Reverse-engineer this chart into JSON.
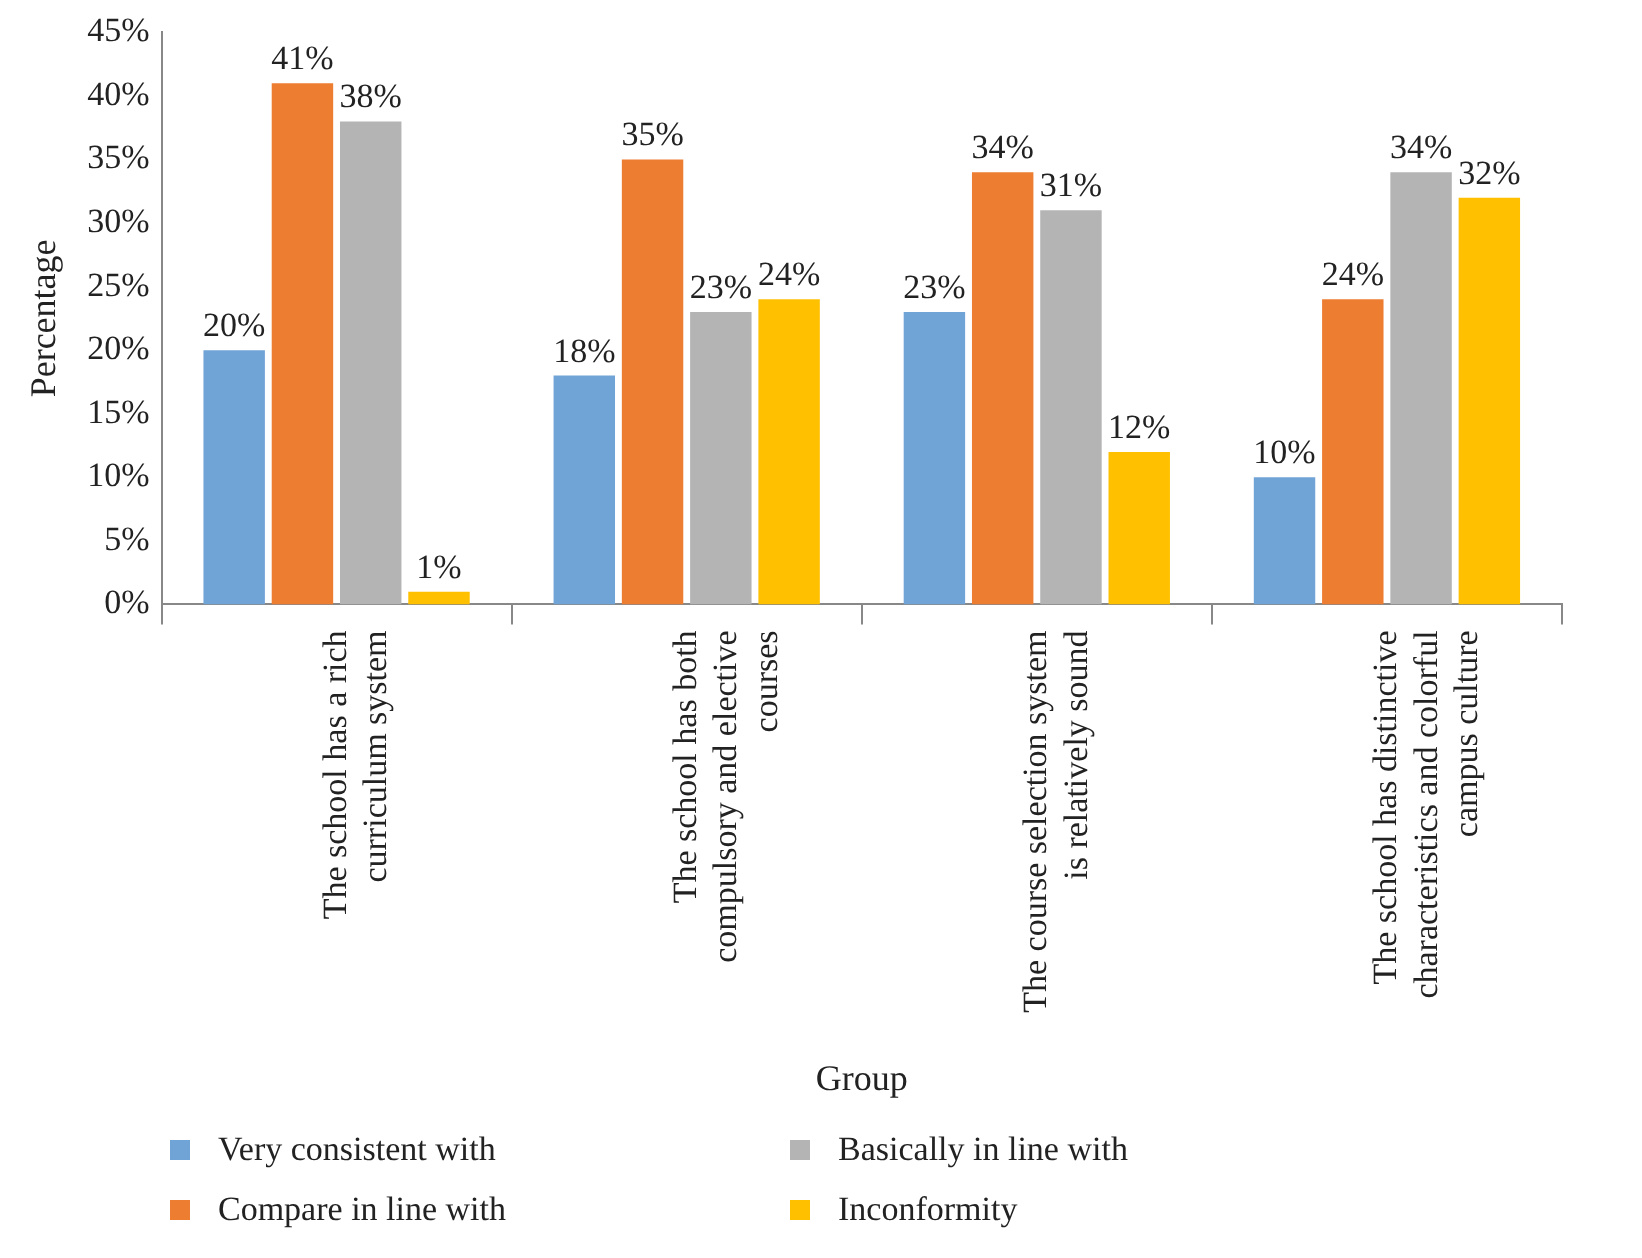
{
  "chart_data": {
    "type": "bar",
    "xlabel": "Group",
    "ylabel": "Percentage",
    "categories": [
      "The school has a rich curriculum system",
      "The school has both compulsory and elective courses",
      "The course selection system is relatively sound",
      "The school has distinctive characteristics and colorful campus culture"
    ],
    "series": [
      {
        "name": "Very consistent with",
        "color": "#70a3d6",
        "values": [
          20,
          18,
          23,
          10
        ],
        "value_labels": [
          "20%",
          "18%",
          "23%",
          "10%"
        ]
      },
      {
        "name": "Compare in line with",
        "color": "#ed7d31",
        "values": [
          41,
          35,
          34,
          24
        ],
        "value_labels": [
          "41%",
          "35%",
          "34%",
          "24%"
        ]
      },
      {
        "name": "Basically in line with",
        "color": "#b4b4b4",
        "values": [
          38,
          23,
          31,
          34
        ],
        "value_labels": [
          "38%",
          "23%",
          "31%",
          "34%"
        ]
      },
      {
        "name": "Inconformity",
        "color": "#ffc000",
        "values": [
          1,
          24,
          12,
          32
        ],
        "value_labels": [
          "1%",
          "24%",
          "12%",
          "32%"
        ]
      }
    ],
    "ylim": [
      0,
      45
    ],
    "yticks": [
      {
        "value": 0,
        "label": "0%"
      },
      {
        "value": 5,
        "label": "5%"
      },
      {
        "value": 10,
        "label": "10%"
      },
      {
        "value": 15,
        "label": "15%"
      },
      {
        "value": 20,
        "label": "20%"
      },
      {
        "value": 25,
        "label": "25%"
      },
      {
        "value": 30,
        "label": "30%"
      },
      {
        "value": 35,
        "label": "35%"
      },
      {
        "value": 40,
        "label": "40%"
      },
      {
        "value": 45,
        "label": "45%"
      }
    ],
    "grid": false,
    "legend": "bottom"
  }
}
